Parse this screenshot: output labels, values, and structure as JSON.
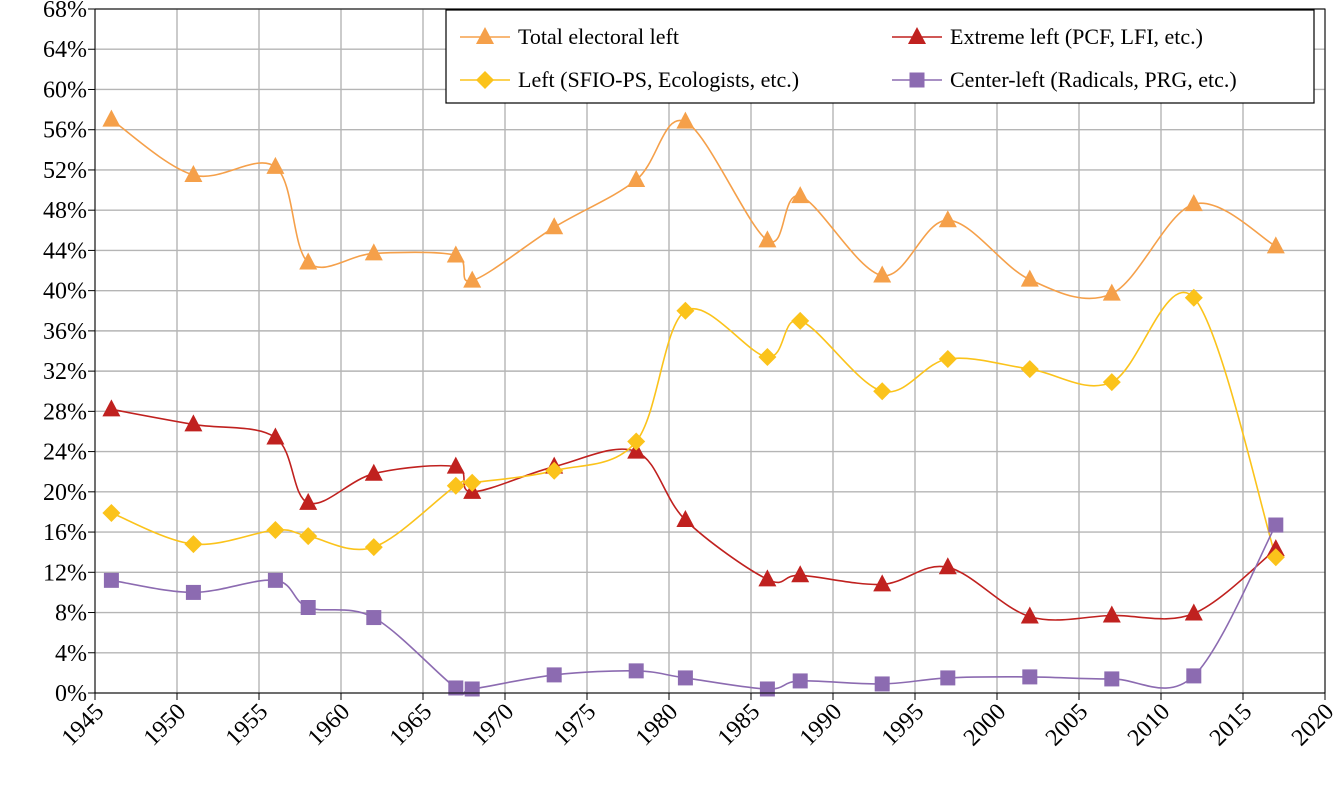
{
  "chart_data": {
    "type": "line",
    "title": "",
    "xlabel": "",
    "ylabel": "",
    "xlim": [
      1945,
      2020
    ],
    "ylim": [
      0,
      68
    ],
    "x_ticks": [
      "1945",
      "1950",
      "1955",
      "1960",
      "1965",
      "1970",
      "1975",
      "1980",
      "1985",
      "1990",
      "1995",
      "2000",
      "2005",
      "2010",
      "2015",
      "2020"
    ],
    "y_ticks": [
      "0%",
      "4%",
      "8%",
      "12%",
      "16%",
      "20%",
      "24%",
      "28%",
      "32%",
      "36%",
      "40%",
      "44%",
      "48%",
      "52%",
      "56%",
      "60%",
      "64%",
      "68%"
    ],
    "grid": true,
    "legend_position": "top-right",
    "series": [
      {
        "name": "Total electoral left",
        "color": "#f5a04a",
        "marker": "triangle",
        "points": [
          [
            1946,
            57.0
          ],
          [
            1951,
            51.5
          ],
          [
            1956,
            52.3
          ],
          [
            1958,
            42.8
          ],
          [
            1962,
            43.7
          ],
          [
            1967,
            43.5
          ],
          [
            1968,
            41.0
          ],
          [
            1973,
            46.3
          ],
          [
            1978,
            51.0
          ],
          [
            1981,
            56.8
          ],
          [
            1986,
            45.0
          ],
          [
            1988,
            49.4
          ],
          [
            1993,
            41.5
          ],
          [
            1997,
            47.0
          ],
          [
            2002,
            41.1
          ],
          [
            2007,
            39.7
          ],
          [
            2012,
            48.6
          ],
          [
            2017,
            44.4
          ]
        ]
      },
      {
        "name": "Extreme left (PCF, LFI, etc.)",
        "color": "#c0211f",
        "marker": "triangle",
        "points": [
          [
            1946,
            28.2
          ],
          [
            1951,
            26.7
          ],
          [
            1956,
            25.4
          ],
          [
            1958,
            18.9
          ],
          [
            1962,
            21.8
          ],
          [
            1967,
            22.5
          ],
          [
            1968,
            20.0
          ],
          [
            1973,
            22.5
          ],
          [
            1978,
            24.0
          ],
          [
            1981,
            17.2
          ],
          [
            1986,
            11.3
          ],
          [
            1988,
            11.7
          ],
          [
            1993,
            10.8
          ],
          [
            1997,
            12.5
          ],
          [
            2002,
            7.6
          ],
          [
            2007,
            7.7
          ],
          [
            2012,
            7.9
          ],
          [
            2017,
            14.3
          ]
        ]
      },
      {
        "name": "Left (SFIO-PS, Ecologists, etc.)",
        "color": "#fbc31b",
        "marker": "diamond",
        "points": [
          [
            1946,
            17.9
          ],
          [
            1951,
            14.8
          ],
          [
            1956,
            16.2
          ],
          [
            1958,
            15.6
          ],
          [
            1962,
            14.5
          ],
          [
            1967,
            20.6
          ],
          [
            1968,
            20.9
          ],
          [
            1973,
            22.1
          ],
          [
            1978,
            25.0
          ],
          [
            1981,
            38.0
          ],
          [
            1986,
            33.4
          ],
          [
            1988,
            37.0
          ],
          [
            1993,
            30.0
          ],
          [
            1997,
            33.2
          ],
          [
            2002,
            32.2
          ],
          [
            2007,
            30.9
          ],
          [
            2012,
            39.3
          ],
          [
            2017,
            13.5
          ]
        ]
      },
      {
        "name": "Center-left (Radicals, PRG, etc.)",
        "color": "#8c6bb1",
        "marker": "square",
        "points": [
          [
            1946,
            11.2
          ],
          [
            1951,
            10.0
          ],
          [
            1956,
            11.2
          ],
          [
            1958,
            8.5
          ],
          [
            1962,
            7.5
          ],
          [
            1967,
            0.5
          ],
          [
            1968,
            0.4
          ],
          [
            1973,
            1.8
          ],
          [
            1978,
            2.2
          ],
          [
            1981,
            1.5
          ],
          [
            1986,
            0.4
          ],
          [
            1988,
            1.2
          ],
          [
            1993,
            0.9
          ],
          [
            1997,
            1.5
          ],
          [
            2002,
            1.6
          ],
          [
            2007,
            1.4
          ],
          [
            2012,
            1.7
          ],
          [
            2017,
            16.7
          ]
        ]
      }
    ]
  }
}
